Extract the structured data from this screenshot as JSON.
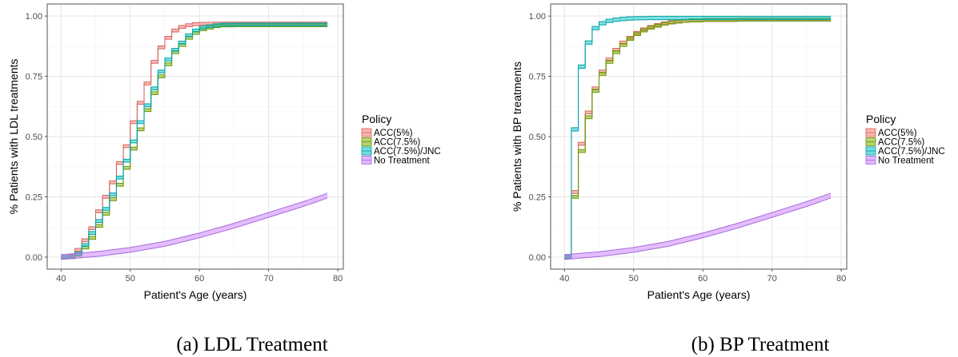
{
  "legend": {
    "title": "Policy",
    "labels": [
      "ACC(5%)",
      "ACC(7.5%)",
      "ACC(7.5%)/JNC",
      "No Treatment"
    ],
    "colors": [
      "#F8766D",
      "#7CAE00",
      "#00BFC4",
      "#C77CFF"
    ]
  },
  "chart_data": [
    {
      "type": "line",
      "subtype": "step-ribbon",
      "caption": "(a) LDL Treatment",
      "xlabel": "Patient's Age (years)",
      "ylabel": "% Patients with LDL treatments",
      "xlim": [
        38,
        80.8
      ],
      "ylim": [
        -0.05,
        1.05
      ],
      "xticks": [
        40,
        50,
        60,
        70,
        80
      ],
      "xtick_labels": [
        "40",
        "50",
        "60",
        "70",
        "80"
      ],
      "yticks": [
        0,
        0.25,
        0.5,
        0.75,
        1.0
      ],
      "ytick_labels": [
        "0.00",
        "0.25",
        "0.50",
        "0.75",
        "1.00"
      ],
      "grid": true,
      "legend_position": "right",
      "series": [
        {
          "name": "ACC(5%)",
          "color": "#F8766D",
          "band": 0.012,
          "x": [
            40,
            41,
            42,
            43,
            44,
            45,
            46,
            47,
            48,
            49,
            50,
            51,
            52,
            53,
            54,
            55,
            56,
            57,
            58,
            59,
            60,
            62,
            65,
            70,
            78.5
          ],
          "y": [
            0,
            0.005,
            0.03,
            0.07,
            0.12,
            0.19,
            0.25,
            0.31,
            0.39,
            0.46,
            0.56,
            0.64,
            0.72,
            0.81,
            0.87,
            0.91,
            0.94,
            0.955,
            0.962,
            0.966,
            0.968,
            0.969,
            0.969,
            0.969,
            0.969
          ]
        },
        {
          "name": "ACC(7.5%)",
          "color": "#7CAE00",
          "band": 0.012,
          "x": [
            40,
            41,
            42,
            43,
            44,
            45,
            46,
            47,
            48,
            49,
            50,
            51,
            52,
            53,
            54,
            55,
            56,
            57,
            58,
            59,
            60,
            61,
            62,
            63,
            65,
            70,
            78.5
          ],
          "y": [
            0,
            0,
            0.01,
            0.04,
            0.08,
            0.13,
            0.18,
            0.24,
            0.3,
            0.37,
            0.45,
            0.53,
            0.61,
            0.68,
            0.75,
            0.8,
            0.85,
            0.88,
            0.91,
            0.93,
            0.945,
            0.952,
            0.958,
            0.961,
            0.962,
            0.962,
            0.962
          ]
        },
        {
          "name": "ACC(7.5%)/JNC",
          "color": "#00BFC4",
          "band": 0.012,
          "x": [
            40,
            41,
            42,
            43,
            44,
            45,
            46,
            47,
            48,
            49,
            50,
            51,
            52,
            53,
            54,
            55,
            56,
            57,
            58,
            59,
            60,
            61,
            62,
            63,
            65,
            70,
            78.5
          ],
          "y": [
            0,
            0,
            0.015,
            0.05,
            0.1,
            0.15,
            0.2,
            0.26,
            0.33,
            0.4,
            0.48,
            0.56,
            0.63,
            0.7,
            0.77,
            0.82,
            0.86,
            0.89,
            0.92,
            0.94,
            0.952,
            0.958,
            0.962,
            0.964,
            0.965,
            0.965,
            0.965
          ]
        },
        {
          "name": "No Treatment",
          "color": "#C77CFF",
          "band": 0.02,
          "x": [
            40,
            45,
            50,
            55,
            60,
            65,
            70,
            75,
            78.5
          ],
          "y": [
            0,
            0.012,
            0.03,
            0.055,
            0.09,
            0.13,
            0.175,
            0.22,
            0.255
          ]
        }
      ]
    },
    {
      "type": "line",
      "subtype": "step-ribbon",
      "caption": "(b) BP Treatment",
      "xlabel": "Patient's Age (years)",
      "ylabel": "% Patients with BP treatments",
      "xlim": [
        38,
        80.8
      ],
      "ylim": [
        -0.05,
        1.05
      ],
      "xticks": [
        40,
        50,
        60,
        70,
        80
      ],
      "xtick_labels": [
        "40",
        "50",
        "60",
        "70",
        "80"
      ],
      "yticks": [
        0,
        0.25,
        0.5,
        0.75,
        1.0
      ],
      "ytick_labels": [
        "0.00",
        "0.25",
        "0.50",
        "0.75",
        "1.00"
      ],
      "grid": true,
      "legend_position": "right",
      "series": [
        {
          "name": "ACC(5%)",
          "color": "#F8766D",
          "band": 0.012,
          "x": [
            40,
            41,
            42,
            43,
            44,
            45,
            46,
            47,
            48,
            49,
            50,
            51,
            52,
            53,
            54,
            55,
            56,
            57,
            58,
            60,
            65,
            70,
            78.5
          ],
          "y": [
            0,
            0.27,
            0.47,
            0.6,
            0.7,
            0.77,
            0.82,
            0.86,
            0.89,
            0.91,
            0.93,
            0.945,
            0.955,
            0.963,
            0.97,
            0.975,
            0.978,
            0.98,
            0.982,
            0.984,
            0.985,
            0.985,
            0.985
          ]
        },
        {
          "name": "ACC(7.5%)",
          "color": "#7CAE00",
          "band": 0.012,
          "x": [
            40,
            41,
            42,
            43,
            44,
            45,
            46,
            47,
            48,
            49,
            50,
            51,
            52,
            53,
            54,
            55,
            56,
            57,
            58,
            60,
            65,
            70,
            78.5
          ],
          "y": [
            0,
            0.25,
            0.44,
            0.58,
            0.69,
            0.76,
            0.81,
            0.85,
            0.88,
            0.905,
            0.925,
            0.94,
            0.952,
            0.96,
            0.968,
            0.973,
            0.977,
            0.98,
            0.982,
            0.984,
            0.985,
            0.985,
            0.985
          ]
        },
        {
          "name": "ACC(7.5%)/JNC",
          "color": "#00BFC4",
          "band": 0.014,
          "x": [
            40,
            41,
            42,
            43,
            44,
            45,
            46,
            47,
            48,
            49,
            50,
            52,
            55,
            60,
            65,
            70,
            78.5
          ],
          "y": [
            0,
            0.53,
            0.79,
            0.89,
            0.95,
            0.97,
            0.98,
            0.985,
            0.988,
            0.99,
            0.991,
            0.992,
            0.992,
            0.992,
            0.992,
            0.992,
            0.992
          ]
        },
        {
          "name": "No Treatment",
          "color": "#C77CFF",
          "band": 0.02,
          "x": [
            40,
            45,
            50,
            55,
            60,
            65,
            70,
            75,
            78.5
          ],
          "y": [
            0,
            0.012,
            0.03,
            0.055,
            0.09,
            0.13,
            0.175,
            0.22,
            0.255
          ]
        }
      ]
    }
  ]
}
